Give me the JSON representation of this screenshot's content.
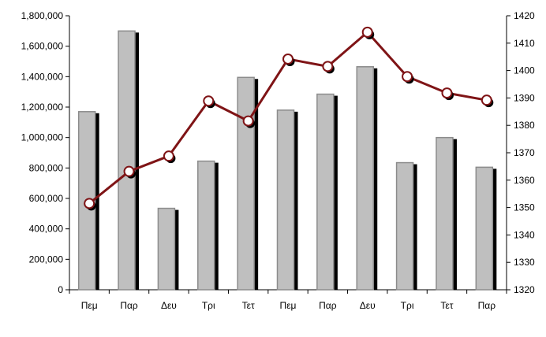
{
  "chart_data": {
    "type": "bar",
    "categories": [
      "Πεμ",
      "Παρ",
      "Δευ",
      "Τρι",
      "Τετ",
      "Πεμ",
      "Παρ",
      "Δευ",
      "Τρι",
      "Τετ",
      "Παρ"
    ],
    "series": [
      {
        "axis": "left",
        "type": "bar",
        "values": [
          1170000,
          1700000,
          535000,
          845000,
          1395000,
          1180000,
          1285000,
          1465000,
          835000,
          1000000,
          805000
        ]
      },
      {
        "axis": "right",
        "type": "line",
        "values": [
          1351.5,
          1363.2,
          1368.8,
          1388.9,
          1381.6,
          1404.2,
          1401.5,
          1414.0,
          1397.8,
          1391.8,
          1389.2
        ]
      }
    ],
    "ylim": [
      0,
      1800000
    ],
    "ylim_right": [
      1320,
      1420
    ],
    "yticks": [
      0,
      200000,
      400000,
      600000,
      800000,
      1000000,
      1200000,
      1400000,
      1600000,
      1800000
    ],
    "yticks_right": [
      1320,
      1330,
      1340,
      1350,
      1360,
      1370,
      1380,
      1390,
      1400,
      1410,
      1420
    ],
    "ytick_labels": [
      "0",
      "200,000",
      "400,000",
      "600,000",
      "800,000",
      "1,000,000",
      "1,200,000",
      "1,400,000",
      "1,600,000",
      "1,800,000"
    ],
    "ytick_labels_right": [
      "1320",
      "1330",
      "1340",
      "1350",
      "1360",
      "1370",
      "1380",
      "1390",
      "1400",
      "1410",
      "1420"
    ],
    "grid": false,
    "legend": "none",
    "colors": {
      "bar_fill": "#bfbfbf",
      "bar_stroke": "#8c8c8c",
      "bar_shadow": "#000000",
      "line": "#7f1416",
      "marker_fill": "#ffffff",
      "axis": "#000000"
    }
  }
}
